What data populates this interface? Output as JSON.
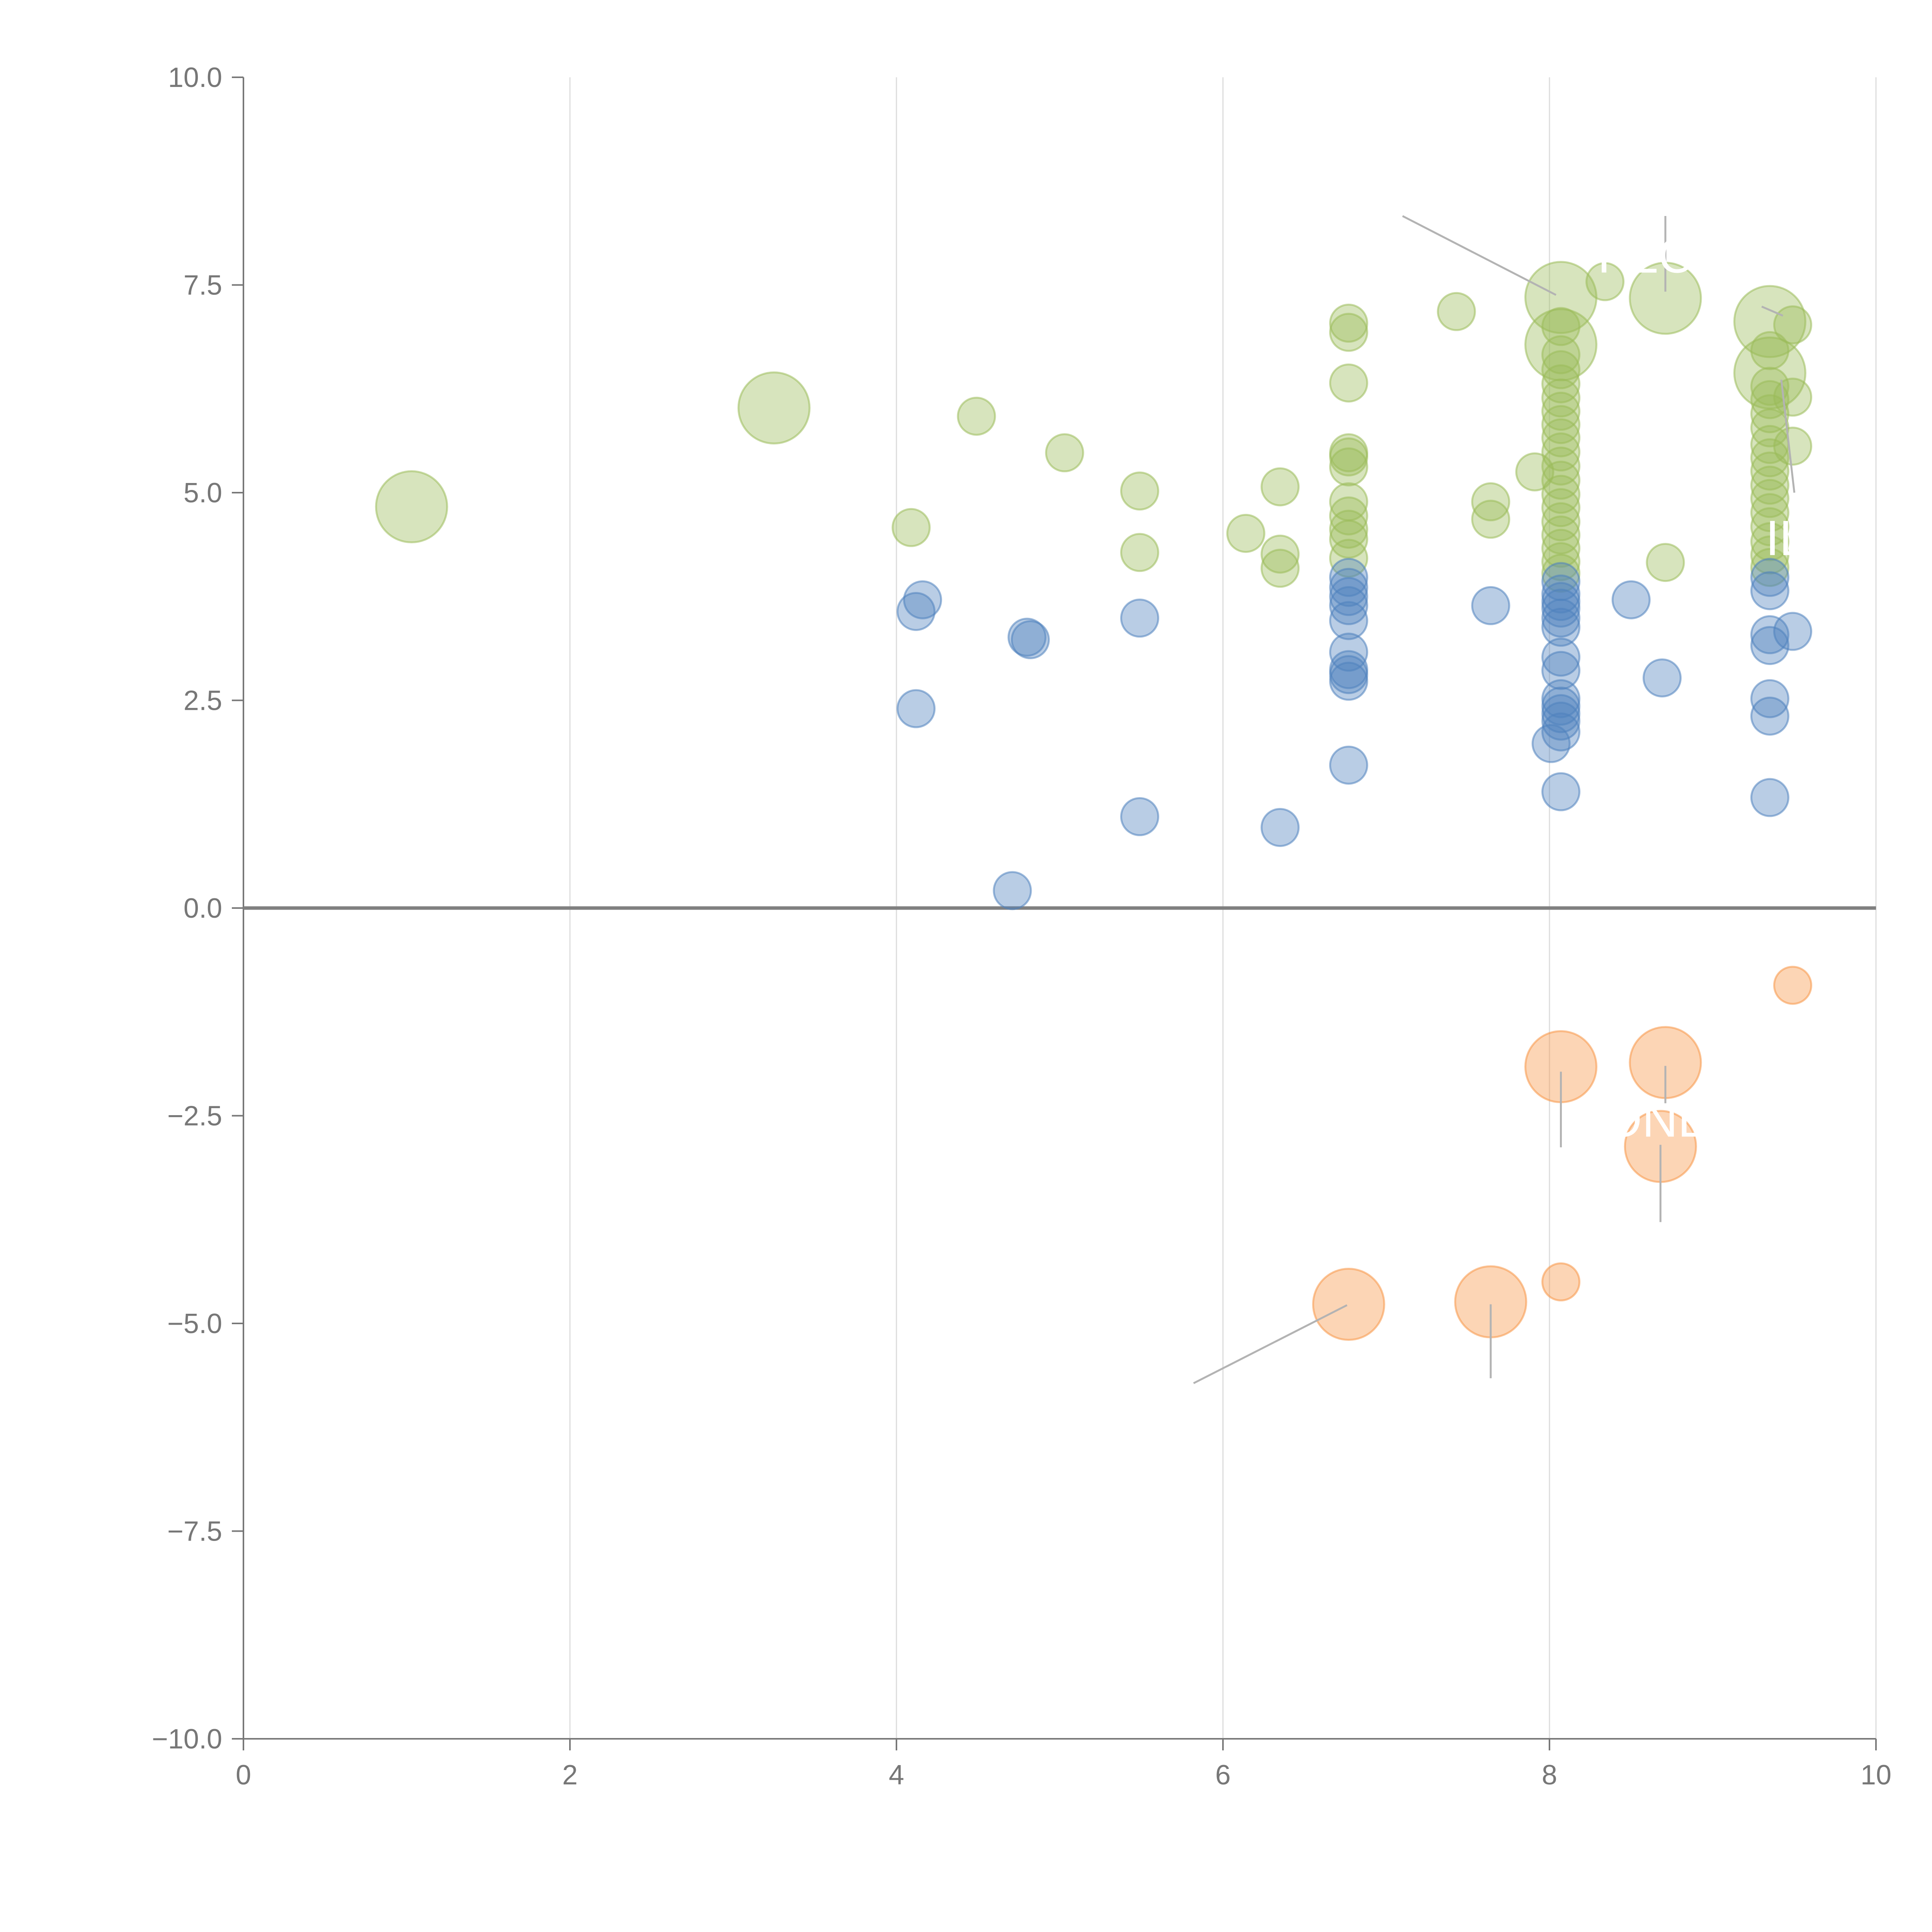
{
  "chart_data": {
    "type": "scatter",
    "title": "",
    "xlabel": "",
    "ylabel": "",
    "xlim": [
      0,
      10
    ],
    "ylim": [
      -10,
      10
    ],
    "x_ticks": [
      0,
      2,
      4,
      6,
      8,
      10
    ],
    "y_ticks": [
      10,
      7.5,
      5,
      2.5,
      0,
      -2.5,
      -5,
      -7.5,
      -10
    ],
    "x_tick_labels": [
      "0",
      "2",
      "4",
      "6",
      "8",
      "10"
    ],
    "y_tick_labels": [
      "10.0",
      "7.5",
      "5.0",
      "2.5",
      "0.0",
      "−2.5",
      "−5.0",
      "−7.5",
      "−10.0"
    ],
    "grid": "vertical lines at x ticks",
    "zero_line": true,
    "series": [
      {
        "name": "green",
        "color": "#9bbb59",
        "points": [
          {
            "x": 1.03,
            "y": 4.83,
            "s": 3
          },
          {
            "x": 3.25,
            "y": 6.02,
            "s": 3
          },
          {
            "x": 4.09,
            "y": 4.58,
            "s": 1
          },
          {
            "x": 4.49,
            "y": 5.92,
            "s": 1
          },
          {
            "x": 5.03,
            "y": 5.48,
            "s": 1
          },
          {
            "x": 5.49,
            "y": 5.02,
            "s": 1
          },
          {
            "x": 5.49,
            "y": 4.28,
            "s": 1
          },
          {
            "x": 6.14,
            "y": 4.51,
            "s": 1
          },
          {
            "x": 6.35,
            "y": 5.07,
            "s": 1
          },
          {
            "x": 6.35,
            "y": 4.26,
            "s": 1
          },
          {
            "x": 6.35,
            "y": 4.09,
            "s": 1
          },
          {
            "x": 6.77,
            "y": 7.04,
            "s": 1
          },
          {
            "x": 6.77,
            "y": 6.93,
            "s": 1
          },
          {
            "x": 6.77,
            "y": 6.32,
            "s": 1
          },
          {
            "x": 6.77,
            "y": 5.48,
            "s": 1
          },
          {
            "x": 6.77,
            "y": 5.43,
            "s": 1
          },
          {
            "x": 6.77,
            "y": 5.31,
            "s": 1
          },
          {
            "x": 6.77,
            "y": 4.89,
            "s": 1
          },
          {
            "x": 6.77,
            "y": 4.72,
            "s": 1
          },
          {
            "x": 6.77,
            "y": 4.56,
            "s": 1
          },
          {
            "x": 6.77,
            "y": 4.44,
            "s": 1
          },
          {
            "x": 6.77,
            "y": 4.21,
            "s": 1
          },
          {
            "x": 7.43,
            "y": 7.18,
            "s": 1
          },
          {
            "x": 7.64,
            "y": 4.89,
            "s": 1
          },
          {
            "x": 7.64,
            "y": 4.68,
            "s": 1
          },
          {
            "x": 7.91,
            "y": 5.25,
            "s": 1
          },
          {
            "x": 8.07,
            "y": 7.35,
            "s": 3
          },
          {
            "x": 8.07,
            "y": 6.78,
            "s": 3
          },
          {
            "x": 8.07,
            "y": 7.0,
            "s": 1
          },
          {
            "x": 8.07,
            "y": 6.66,
            "s": 1
          },
          {
            "x": 8.07,
            "y": 6.48,
            "s": 1
          },
          {
            "x": 8.07,
            "y": 6.31,
            "s": 1
          },
          {
            "x": 8.07,
            "y": 6.14,
            "s": 1
          },
          {
            "x": 8.07,
            "y": 5.98,
            "s": 1
          },
          {
            "x": 8.07,
            "y": 5.82,
            "s": 1
          },
          {
            "x": 8.07,
            "y": 5.66,
            "s": 1
          },
          {
            "x": 8.07,
            "y": 5.49,
            "s": 1
          },
          {
            "x": 8.07,
            "y": 5.32,
            "s": 1
          },
          {
            "x": 8.07,
            "y": 5.15,
            "s": 1
          },
          {
            "x": 8.07,
            "y": 4.98,
            "s": 1
          },
          {
            "x": 8.07,
            "y": 4.82,
            "s": 1
          },
          {
            "x": 8.07,
            "y": 4.65,
            "s": 1
          },
          {
            "x": 8.07,
            "y": 4.49,
            "s": 1
          },
          {
            "x": 8.07,
            "y": 4.33,
            "s": 1
          },
          {
            "x": 8.07,
            "y": 4.17,
            "s": 1
          },
          {
            "x": 8.07,
            "y": 4.03,
            "s": 1
          },
          {
            "x": 8.34,
            "y": 7.54,
            "s": 1
          },
          {
            "x": 8.71,
            "y": 7.34,
            "s": 3
          },
          {
            "x": 8.71,
            "y": 4.16,
            "s": 1
          },
          {
            "x": 9.35,
            "y": 7.06,
            "s": 3
          },
          {
            "x": 9.35,
            "y": 6.44,
            "s": 3
          },
          {
            "x": 9.35,
            "y": 6.71,
            "s": 1
          },
          {
            "x": 9.35,
            "y": 6.28,
            "s": 1
          },
          {
            "x": 9.35,
            "y": 6.12,
            "s": 1
          },
          {
            "x": 9.35,
            "y": 5.95,
            "s": 1
          },
          {
            "x": 9.35,
            "y": 5.78,
            "s": 1
          },
          {
            "x": 9.35,
            "y": 5.58,
            "s": 1
          },
          {
            "x": 9.35,
            "y": 5.42,
            "s": 1
          },
          {
            "x": 9.35,
            "y": 5.26,
            "s": 1
          },
          {
            "x": 9.35,
            "y": 5.09,
            "s": 1
          },
          {
            "x": 9.35,
            "y": 4.93,
            "s": 1
          },
          {
            "x": 9.35,
            "y": 4.76,
            "s": 1
          },
          {
            "x": 9.35,
            "y": 4.59,
            "s": 1
          },
          {
            "x": 9.35,
            "y": 4.41,
            "s": 1
          },
          {
            "x": 9.35,
            "y": 4.25,
            "s": 1
          },
          {
            "x": 9.35,
            "y": 4.1,
            "s": 1
          },
          {
            "x": 9.49,
            "y": 7.02,
            "s": 1
          },
          {
            "x": 9.49,
            "y": 6.15,
            "s": 1
          },
          {
            "x": 9.49,
            "y": 5.56,
            "s": 1
          }
        ]
      },
      {
        "name": "blue",
        "color": "#4f81bd",
        "points": [
          {
            "x": 4.12,
            "y": 3.57,
            "s": 1
          },
          {
            "x": 4.16,
            "y": 3.71,
            "s": 1
          },
          {
            "x": 4.12,
            "y": 2.4,
            "s": 1
          },
          {
            "x": 4.71,
            "y": 0.21,
            "s": 1
          },
          {
            "x": 4.8,
            "y": 3.26,
            "s": 1
          },
          {
            "x": 4.82,
            "y": 3.23,
            "s": 1
          },
          {
            "x": 5.49,
            "y": 3.49,
            "s": 1
          },
          {
            "x": 5.49,
            "y": 1.1,
            "s": 1
          },
          {
            "x": 6.35,
            "y": 0.97,
            "s": 1
          },
          {
            "x": 6.77,
            "y": 3.98,
            "s": 1
          },
          {
            "x": 6.77,
            "y": 3.86,
            "s": 1
          },
          {
            "x": 6.77,
            "y": 3.75,
            "s": 1
          },
          {
            "x": 6.77,
            "y": 3.64,
            "s": 1
          },
          {
            "x": 6.77,
            "y": 3.46,
            "s": 1
          },
          {
            "x": 6.77,
            "y": 3.08,
            "s": 1
          },
          {
            "x": 6.77,
            "y": 2.87,
            "s": 1
          },
          {
            "x": 6.77,
            "y": 2.81,
            "s": 1
          },
          {
            "x": 6.77,
            "y": 2.73,
            "s": 1
          },
          {
            "x": 6.77,
            "y": 1.72,
            "s": 1
          },
          {
            "x": 7.64,
            "y": 3.64,
            "s": 1
          },
          {
            "x": 8.07,
            "y": 3.93,
            "s": 1
          },
          {
            "x": 8.07,
            "y": 3.78,
            "s": 1
          },
          {
            "x": 8.07,
            "y": 3.69,
            "s": 1
          },
          {
            "x": 8.07,
            "y": 3.61,
            "s": 1
          },
          {
            "x": 8.07,
            "y": 3.49,
            "s": 1
          },
          {
            "x": 8.07,
            "y": 3.38,
            "s": 1
          },
          {
            "x": 8.07,
            "y": 3.02,
            "s": 1
          },
          {
            "x": 8.07,
            "y": 2.86,
            "s": 1
          },
          {
            "x": 8.07,
            "y": 2.52,
            "s": 1
          },
          {
            "x": 8.07,
            "y": 2.43,
            "s": 1
          },
          {
            "x": 8.07,
            "y": 2.34,
            "s": 1
          },
          {
            "x": 8.07,
            "y": 2.25,
            "s": 1
          },
          {
            "x": 8.07,
            "y": 2.12,
            "s": 1
          },
          {
            "x": 8.01,
            "y": 1.98,
            "s": 1
          },
          {
            "x": 8.07,
            "y": 1.4,
            "s": 1
          },
          {
            "x": 8.5,
            "y": 3.71,
            "s": 1
          },
          {
            "x": 8.69,
            "y": 2.77,
            "s": 1
          },
          {
            "x": 9.35,
            "y": 3.98,
            "s": 1
          },
          {
            "x": 9.35,
            "y": 3.82,
            "s": 1
          },
          {
            "x": 9.35,
            "y": 3.29,
            "s": 1
          },
          {
            "x": 9.35,
            "y": 3.16,
            "s": 1
          },
          {
            "x": 9.35,
            "y": 2.52,
            "s": 1
          },
          {
            "x": 9.35,
            "y": 2.31,
            "s": 1
          },
          {
            "x": 9.35,
            "y": 1.33,
            "s": 1
          },
          {
            "x": 9.49,
            "y": 3.33,
            "s": 1
          }
        ]
      },
      {
        "name": "orange",
        "color": "#f79646",
        "points": [
          {
            "x": 9.49,
            "y": -0.93,
            "s": 1
          },
          {
            "x": 8.07,
            "y": -1.91,
            "s": 3
          },
          {
            "x": 8.71,
            "y": -1.86,
            "s": 3
          },
          {
            "x": 8.68,
            "y": -2.87,
            "s": 3
          },
          {
            "x": 8.07,
            "y": -4.5,
            "s": 1
          },
          {
            "x": 6.77,
            "y": -4.77,
            "s": 3
          },
          {
            "x": 7.64,
            "y": -4.74,
            "s": 3
          }
        ]
      }
    ],
    "annotations": [
      {
        "text": "PLC",
        "x": 8.59,
        "y": 7.65,
        "leader": [
          [
            7.1,
            8.33
          ],
          [
            8.04,
            7.38
          ]
        ]
      },
      {
        "text": "IL",
        "x": 9.45,
        "y": 4.25,
        "leader": [
          [
            9.42,
            6.36
          ],
          [
            9.5,
            5.0
          ]
        ]
      },
      {
        "text": "ONE",
        "x": 8.66,
        "y": -2.75,
        "leader": [
          [
            8.07,
            -1.97
          ],
          [
            8.07,
            -2.88
          ]
        ]
      }
    ],
    "leaders_unlabeled": [
      {
        "from": [
          8.71,
          8.33
        ],
        "to": [
          8.71,
          7.42
        ]
      },
      {
        "from": [
          9.3,
          7.24
        ],
        "to": [
          9.43,
          7.13
        ]
      },
      {
        "from": [
          8.71,
          -1.9
        ],
        "to": [
          8.71,
          -2.35
        ]
      },
      {
        "from": [
          8.68,
          -2.85
        ],
        "to": [
          8.68,
          -3.78
        ]
      },
      {
        "from": [
          6.76,
          -4.78
        ],
        "to": [
          5.82,
          -5.72
        ]
      },
      {
        "from": [
          7.64,
          -4.77
        ],
        "to": [
          7.64,
          -5.66
        ]
      }
    ]
  }
}
